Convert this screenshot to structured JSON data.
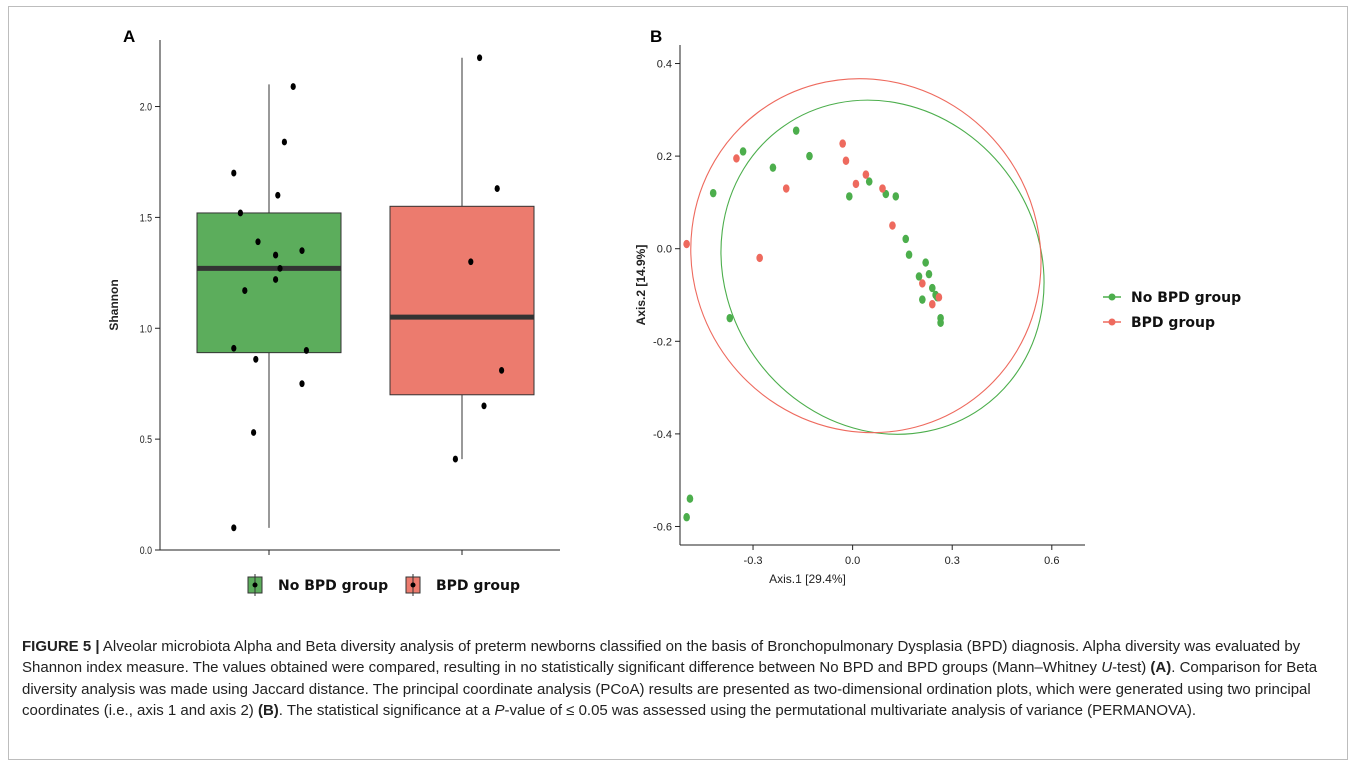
{
  "figure": {
    "panel_a_label": "A",
    "panel_b_label": "B"
  },
  "colors": {
    "no_bpd": "#5cad5c",
    "bpd": "#ec7b6e",
    "no_bpd_scatter": "#4cae4c",
    "bpd_scatter": "#ee6a5e",
    "points_a": "#000000"
  },
  "chart_data": [
    {
      "id": "A",
      "type": "box",
      "ylabel": "Shannon",
      "xlabel": "",
      "ylim": [
        0.0,
        2.3
      ],
      "yticks": [
        0.0,
        0.5,
        1.0,
        1.5,
        2.0
      ],
      "ytick_labels": [
        "0.0",
        "0.5",
        "1.0",
        "1.5",
        "2.0"
      ],
      "legend": {
        "placement": "bottom",
        "entries": [
          "No BPD group",
          "BPD group"
        ]
      },
      "groups": [
        {
          "name": "No BPD group",
          "min": 0.1,
          "q1": 0.89,
          "median": 1.27,
          "q3": 1.52,
          "max": 2.1,
          "points": [
            [
              -0.16,
              1.7
            ],
            [
              -0.13,
              1.52
            ],
            [
              -0.05,
              1.39
            ],
            [
              -0.11,
              1.17
            ],
            [
              -0.16,
              0.91
            ],
            [
              -0.06,
              0.86
            ],
            [
              -0.07,
              0.53
            ],
            [
              -0.16,
              0.1
            ],
            [
              0.11,
              2.09
            ],
            [
              0.07,
              1.84
            ],
            [
              0.04,
              1.6
            ],
            [
              0.03,
              1.33
            ],
            [
              0.05,
              1.27
            ],
            [
              0.03,
              1.22
            ],
            [
              0.15,
              1.35
            ],
            [
              0.17,
              0.9
            ],
            [
              0.15,
              0.75
            ]
          ]
        },
        {
          "name": "BPD group",
          "min": 0.41,
          "q1": 0.7,
          "median": 1.05,
          "q3": 1.55,
          "max": 2.22,
          "points": [
            [
              0.08,
              2.22
            ],
            [
              0.16,
              1.63
            ],
            [
              0.04,
              1.3
            ],
            [
              0.18,
              0.81
            ],
            [
              -0.03,
              0.41
            ],
            [
              0.1,
              0.65
            ]
          ]
        }
      ]
    },
    {
      "id": "B",
      "type": "scatter",
      "xlabel": "Axis.1  [29.4%]",
      "ylabel": "Axis.2  [14.9%]",
      "xlim": [
        -0.52,
        0.7
      ],
      "ylim": [
        -0.64,
        0.44
      ],
      "xticks": [
        -0.3,
        0.0,
        0.3,
        0.6
      ],
      "xtick_labels": [
        "-0.3",
        "0.0",
        "0.3",
        "0.6"
      ],
      "yticks": [
        -0.6,
        -0.4,
        -0.2,
        0.0,
        0.2,
        0.4
      ],
      "ytick_labels": [
        "-0.6",
        "-0.4",
        "-0.2",
        "0.0",
        "0.2",
        "0.4"
      ],
      "legend": {
        "placement": "right",
        "entries": [
          "No BPD group",
          "BPD group"
        ]
      },
      "series": [
        {
          "name": "No BPD group",
          "values": [
            [
              -0.17,
              0.255
            ],
            [
              -0.33,
              0.21
            ],
            [
              -0.42,
              0.12
            ],
            [
              -0.24,
              0.175
            ],
            [
              -0.13,
              0.2
            ],
            [
              -0.01,
              0.113
            ],
            [
              0.05,
              0.145
            ],
            [
              0.1,
              0.118
            ],
            [
              0.13,
              0.113
            ],
            [
              0.16,
              0.021
            ],
            [
              0.17,
              -0.013
            ],
            [
              0.2,
              -0.06
            ],
            [
              0.21,
              -0.11
            ],
            [
              0.22,
              -0.03
            ],
            [
              0.23,
              -0.055
            ],
            [
              0.24,
              -0.085
            ],
            [
              0.25,
              -0.1
            ],
            [
              0.255,
              -0.105
            ],
            [
              0.265,
              -0.15
            ],
            [
              0.265,
              -0.16
            ],
            [
              -0.37,
              -0.15
            ],
            [
              -0.5,
              -0.58
            ],
            [
              -0.49,
              -0.54
            ]
          ]
        },
        {
          "name": "BPD group",
          "values": [
            [
              -0.5,
              0.01
            ],
            [
              -0.35,
              0.195
            ],
            [
              -0.2,
              0.13
            ],
            [
              -0.03,
              0.227
            ],
            [
              -0.02,
              0.19
            ],
            [
              0.01,
              0.14
            ],
            [
              0.04,
              0.16
            ],
            [
              0.09,
              0.13
            ],
            [
              0.12,
              0.05
            ],
            [
              0.21,
              -0.075
            ],
            [
              0.24,
              -0.12
            ],
            [
              0.26,
              -0.105
            ],
            [
              -0.28,
              -0.02
            ]
          ]
        }
      ],
      "ellipses": [
        {
          "name": "No BPD group",
          "center": [
            0.09,
            -0.04
          ],
          "rx": 0.47,
          "ry": 0.24,
          "angle_deg": -35
        },
        {
          "name": "BPD group",
          "center": [
            0.04,
            -0.015
          ],
          "rx": 0.52,
          "ry": 0.25,
          "angle_deg": -37
        }
      ]
    }
  ],
  "caption": {
    "title": "FIGURE 5 |",
    "s1": " Alveolar microbiota Alpha and Beta diversity analysis of preterm newborns classified on the basis of Bronchopulmonary Dysplasia (BPD) diagnosis. Alpha diversity was evaluated by Shannon index measure. The values obtained were compared, resulting in no statistically significant difference between No BPD and BPD groups (Mann–Whitney ",
    "u": "U",
    "s2": "-test) ",
    "ref_a": "(A)",
    "s3": ". Comparison for Beta diversity analysis was made using Jaccard distance. The principal coordinate analysis (PCoA) results are presented as two-dimensional ordination plots, which were generated using two principal coordinates (i.e., axis 1 and axis 2) ",
    "ref_b": "(B)",
    "s4": ". The statistical significance at a ",
    "p": "P",
    "s5": "-value of ≤ 0.05 was assessed using the permutational multivariate analysis of variance (PERMANOVA)."
  }
}
